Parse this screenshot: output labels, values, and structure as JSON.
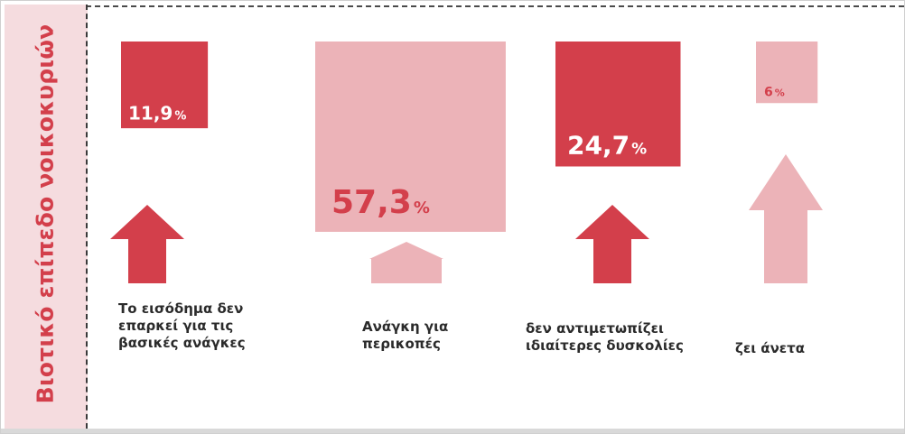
{
  "sidebar": {
    "title": "Βιοτικό επίπεδο νοικοκυριών"
  },
  "colors": {
    "dark": "#d33f4b",
    "light": "#ecb3b8",
    "sidebar_bg": "#f5dcdf",
    "label_text": "#2b2b2b"
  },
  "chart_data": {
    "type": "bar",
    "title": "",
    "value_unit": "%",
    "categories": [
      [
        "Το εισόδημα δεν",
        "επαρκεί για τις",
        "βασικές ανάγκες"
      ],
      [
        "Ανάγκη για",
        "περικοπές"
      ],
      [
        "δεν αντιμετωπίζει",
        "ιδιαίτερες δυσκολίες"
      ],
      [
        "ζει  άνετα"
      ]
    ],
    "values": [
      11.9,
      57.3,
      24.7,
      6
    ],
    "value_labels": [
      "11,9",
      "57,3",
      "24,7",
      "6"
    ],
    "tones": [
      "dark",
      "light",
      "dark",
      "light"
    ]
  }
}
